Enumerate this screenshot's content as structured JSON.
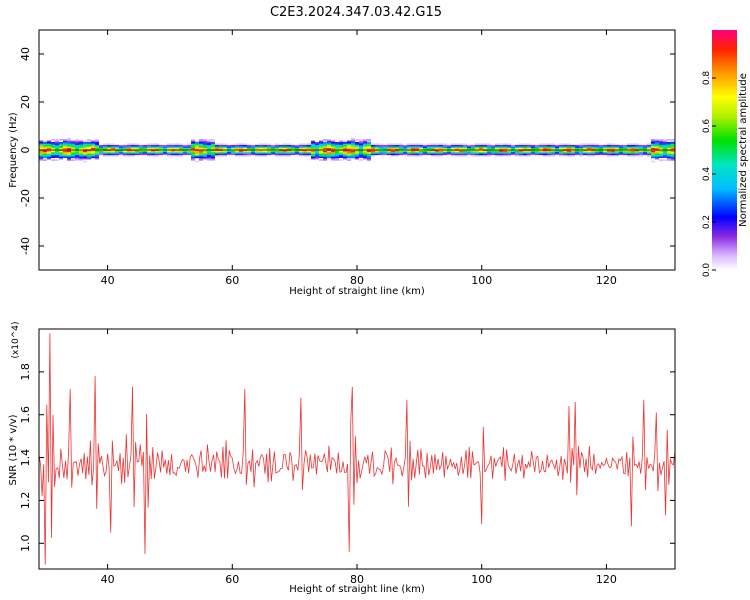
{
  "title": "C2E3.2024.347.03.42.G15",
  "chart_data": [
    {
      "type": "heatmap",
      "xlabel": "Height of straight line (km)",
      "ylabel": "Frequency (Hz)",
      "xlim": [
        29,
        131
      ],
      "ylim": [
        -50,
        50
      ],
      "xticks": [
        40,
        60,
        80,
        100,
        120
      ],
      "yticks": [
        -40,
        -20,
        0,
        20,
        40
      ],
      "band_center_hz": 0,
      "colorbar": {
        "label": "Normalized spectral amplitude",
        "range": [
          0,
          1
        ],
        "ticks": [
          "0.0",
          "0.2",
          "0.4",
          "0.6",
          "0.8"
        ]
      }
    },
    {
      "type": "line",
      "xlabel": "Height of straight line (km)",
      "ylabel": "SNR (10 * v/v)",
      "y_multiplier_label": "(x10^4)",
      "xlim": [
        29,
        131
      ],
      "ylim": [
        0.88,
        2.0
      ],
      "xticks": [
        40,
        60,
        80,
        100,
        120
      ],
      "yticks": [
        "1.0",
        "1.2",
        "1.4",
        "1.6",
        "1.8"
      ],
      "line_color": "#ee3333",
      "mean": 1.37,
      "x_step_km": 0.25,
      "key_points": [
        {
          "x": 29.5,
          "y": 1.22
        },
        {
          "x": 30.0,
          "y": 0.9
        },
        {
          "x": 30.8,
          "y": 1.98
        },
        {
          "x": 31.3,
          "y": 1.6
        },
        {
          "x": 34.0,
          "y": 1.72
        },
        {
          "x": 38.0,
          "y": 1.78
        },
        {
          "x": 40.5,
          "y": 1.05
        },
        {
          "x": 44.0,
          "y": 1.73
        },
        {
          "x": 46.0,
          "y": 0.95
        },
        {
          "x": 62.0,
          "y": 1.72
        },
        {
          "x": 71.0,
          "y": 1.68
        },
        {
          "x": 78.8,
          "y": 0.96
        },
        {
          "x": 79.3,
          "y": 1.73
        },
        {
          "x": 88.0,
          "y": 1.67
        },
        {
          "x": 100.0,
          "y": 1.09
        },
        {
          "x": 114.0,
          "y": 1.64
        },
        {
          "x": 115.0,
          "y": 1.66
        },
        {
          "x": 124.0,
          "y": 1.08
        },
        {
          "x": 126.0,
          "y": 1.67
        },
        {
          "x": 128.0,
          "y": 1.61
        },
        {
          "x": 129.5,
          "y": 1.13
        }
      ]
    }
  ]
}
